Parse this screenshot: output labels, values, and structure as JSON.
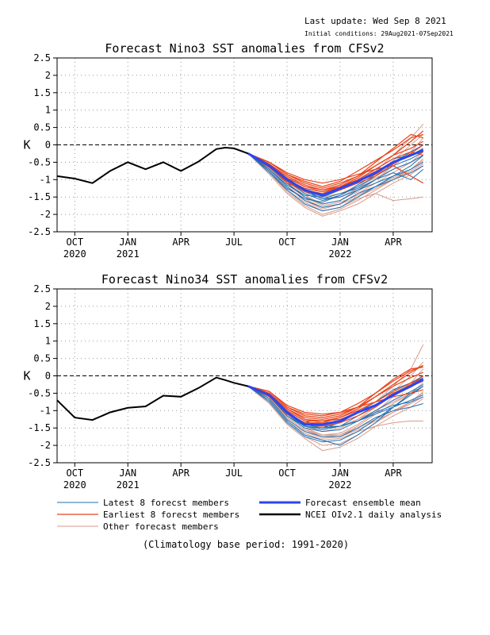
{
  "header": {
    "last_update": "Last update: Wed Sep 8 2021",
    "initial_conditions": "Initial conditions: 29Aug2021-07Sep2021"
  },
  "footer": {
    "note": "(Climatology base period: 1991-2020)"
  },
  "legend": {
    "latest": "Latest 8 forecst members",
    "earliest": "Earliest 8 forecst members",
    "other": "Other forecast members",
    "mean": "Forecast ensemble mean",
    "obs": "NCEI OIv2.1 daily analysis"
  },
  "colors": {
    "latest": "#1f6fb4",
    "earliest": "#e8441c",
    "other": "#d99a87",
    "mean": "#2b45f0",
    "obs": "#000000",
    "grid": "#999999"
  },
  "chart_data": [
    {
      "type": "line",
      "title": "Forecast Nino3 SST anomalies from CFSv2",
      "ylabel": "K",
      "ylim": [
        -2.5,
        2.5
      ],
      "yticks": [
        "2.5",
        "2",
        "1.5",
        "1",
        "0.5",
        "0",
        "-0.5",
        "-1",
        "-1.5",
        "-2",
        "-2.5"
      ],
      "xticks": [
        {
          "x": 3,
          "label": "OCT",
          "year": "2020"
        },
        {
          "x": 6,
          "label": "JAN",
          "year": "2021"
        },
        {
          "x": 9,
          "label": "APR",
          "year": ""
        },
        {
          "x": 12,
          "label": "JUL",
          "year": ""
        },
        {
          "x": 15,
          "label": "OCT",
          "year": ""
        },
        {
          "x": 18,
          "label": "JAN",
          "year": "2022"
        },
        {
          "x": 21,
          "label": "APR",
          "year": ""
        }
      ],
      "xlim": [
        2.0,
        23.2
      ],
      "grid": true,
      "zero_line": true,
      "observed": {
        "x": [
          2.0,
          3.0,
          4.0,
          5.0,
          6.0,
          7.0,
          8.0,
          9.0,
          10.0,
          11.0,
          11.5,
          12.0,
          12.8
        ],
        "y": [
          -0.9,
          -0.97,
          -1.1,
          -0.75,
          -0.5,
          -0.7,
          -0.5,
          -0.75,
          -0.48,
          -0.12,
          -0.08,
          -0.1,
          -0.25
        ]
      },
      "ensemble_mean": {
        "x": [
          12.8,
          14.0,
          15.0,
          16.0,
          17.0,
          18.0,
          19.0,
          20.0,
          21.0,
          22.0,
          22.7
        ],
        "y": [
          -0.25,
          -0.6,
          -1.0,
          -1.3,
          -1.45,
          -1.25,
          -1.05,
          -0.8,
          -0.5,
          -0.3,
          -0.15
        ]
      },
      "members": {
        "x": [
          12.8,
          14.0,
          15.0,
          16.0,
          17.0,
          18.0,
          19.0,
          20.0,
          21.0,
          22.0,
          22.7
        ],
        "latest": [
          [
            -0.25,
            -0.7,
            -1.2,
            -1.6,
            -1.8,
            -1.7,
            -1.4,
            -1.2,
            -1.0,
            -0.8,
            -0.6
          ],
          [
            -0.25,
            -0.65,
            -1.1,
            -1.5,
            -1.7,
            -1.6,
            -1.3,
            -1.0,
            -0.7,
            -0.5,
            -0.3
          ],
          [
            -0.25,
            -0.75,
            -1.25,
            -1.55,
            -1.65,
            -1.45,
            -1.2,
            -0.9,
            -0.6,
            -0.4,
            -0.2
          ],
          [
            -0.25,
            -0.6,
            -1.0,
            -1.35,
            -1.55,
            -1.4,
            -1.25,
            -1.0,
            -0.8,
            -1.0,
            -0.7
          ],
          [
            -0.25,
            -0.7,
            -1.15,
            -1.45,
            -1.5,
            -1.3,
            -1.0,
            -0.7,
            -0.4,
            -0.3,
            -0.1
          ],
          [
            -0.25,
            -0.8,
            -1.3,
            -1.7,
            -1.9,
            -1.8,
            -1.5,
            -1.2,
            -0.9,
            -0.6,
            -0.3
          ],
          [
            -0.25,
            -0.55,
            -0.95,
            -1.3,
            -1.55,
            -1.5,
            -1.3,
            -1.1,
            -0.9,
            -0.7,
            -0.5
          ],
          [
            -0.25,
            -0.65,
            -1.05,
            -1.4,
            -1.6,
            -1.45,
            -1.15,
            -0.85,
            -0.5,
            -0.2,
            0.0
          ]
        ],
        "earliest": [
          [
            -0.25,
            -0.5,
            -0.85,
            -1.1,
            -1.25,
            -1.1,
            -0.9,
            -0.6,
            -0.3,
            0.1,
            0.4
          ],
          [
            -0.25,
            -0.55,
            -0.9,
            -1.15,
            -1.3,
            -1.15,
            -0.9,
            -0.5,
            -0.1,
            0.3,
            0.2
          ],
          [
            -0.25,
            -0.6,
            -1.0,
            -1.25,
            -1.35,
            -1.2,
            -1.0,
            -0.7,
            -0.4,
            -0.2,
            -0.3
          ],
          [
            -0.25,
            -0.5,
            -0.8,
            -1.0,
            -1.1,
            -1.0,
            -0.85,
            -0.7,
            -0.6,
            -0.9,
            -1.1
          ],
          [
            -0.25,
            -0.6,
            -1.1,
            -1.3,
            -1.4,
            -1.2,
            -0.95,
            -0.6,
            -0.3,
            -0.1,
            0.1
          ],
          [
            -0.25,
            -0.55,
            -0.95,
            -1.2,
            -1.3,
            -1.2,
            -1.05,
            -0.85,
            -0.5,
            -0.3,
            -0.2
          ],
          [
            -0.25,
            -0.65,
            -1.05,
            -1.35,
            -1.45,
            -1.3,
            -1.1,
            -0.9,
            -0.55,
            -0.25,
            0.0
          ],
          [
            -0.25,
            -0.5,
            -0.85,
            -1.05,
            -1.2,
            -1.05,
            -0.75,
            -0.45,
            -0.15,
            0.2,
            0.3
          ]
        ],
        "other": [
          [
            -0.25,
            -0.7,
            -1.2,
            -1.6,
            -1.85,
            -1.7,
            -1.4,
            -1.1,
            -0.8,
            -0.5,
            -0.2
          ],
          [
            -0.25,
            -0.8,
            -1.35,
            -1.75,
            -2.0,
            -1.85,
            -1.6,
            -1.3,
            -1.0,
            -0.7,
            -0.4
          ],
          [
            -0.25,
            -0.6,
            -1.0,
            -1.3,
            -1.5,
            -1.4,
            -1.2,
            -0.95,
            -0.7,
            -0.5,
            -0.3
          ],
          [
            -0.25,
            -0.75,
            -1.3,
            -1.65,
            -1.9,
            -1.8,
            -1.55,
            -1.4,
            -1.6,
            -1.55,
            -1.5
          ],
          [
            -0.25,
            -0.55,
            -0.9,
            -1.2,
            -1.35,
            -1.25,
            -1.0,
            -0.75,
            -0.3,
            0.2,
            0.6
          ],
          [
            -0.25,
            -0.65,
            -1.1,
            -1.45,
            -1.7,
            -1.6,
            -1.35,
            -1.0,
            -0.6,
            -0.2,
            0.2
          ],
          [
            -0.25,
            -0.7,
            -1.15,
            -1.5,
            -1.75,
            -1.65,
            -1.45,
            -1.2,
            -0.95,
            -0.7,
            -0.45
          ],
          [
            -0.25,
            -0.85,
            -1.4,
            -1.8,
            -2.05,
            -1.9,
            -1.7,
            -1.4,
            -1.1,
            -0.85,
            -0.6
          ],
          [
            -0.25,
            -0.6,
            -1.05,
            -1.4,
            -1.6,
            -1.5,
            -1.25,
            -0.9,
            -0.45,
            0.0,
            0.3
          ],
          [
            -0.25,
            -0.7,
            -1.2,
            -1.55,
            -1.8,
            -1.7,
            -1.5,
            -1.25,
            -1.0,
            -0.75,
            -0.55
          ]
        ]
      }
    },
    {
      "type": "line",
      "title": "Forecast Nino34 SST anomalies from CFSv2",
      "ylabel": "K",
      "ylim": [
        -2.5,
        2.5
      ],
      "yticks": [
        "2.5",
        "2",
        "1.5",
        "1",
        "0.5",
        "0",
        "-0.5",
        "-1",
        "-1.5",
        "-2",
        "-2.5"
      ],
      "xticks": [
        {
          "x": 3,
          "label": "OCT",
          "year": "2020"
        },
        {
          "x": 6,
          "label": "JAN",
          "year": "2021"
        },
        {
          "x": 9,
          "label": "APR",
          "year": ""
        },
        {
          "x": 12,
          "label": "JUL",
          "year": ""
        },
        {
          "x": 15,
          "label": "OCT",
          "year": ""
        },
        {
          "x": 18,
          "label": "JAN",
          "year": "2022"
        },
        {
          "x": 21,
          "label": "APR",
          "year": ""
        }
      ],
      "xlim": [
        2.0,
        23.2
      ],
      "grid": true,
      "zero_line": true,
      "observed": {
        "x": [
          2.0,
          3.0,
          4.0,
          5.0,
          6.0,
          7.0,
          8.0,
          9.0,
          10.0,
          11.0,
          11.5,
          12.0,
          12.8
        ],
        "y": [
          -0.7,
          -1.2,
          -1.27,
          -1.05,
          -0.92,
          -0.88,
          -0.57,
          -0.6,
          -0.35,
          -0.05,
          -0.12,
          -0.2,
          -0.3
        ]
      },
      "ensemble_mean": {
        "x": [
          12.8,
          14.0,
          15.0,
          16.0,
          17.0,
          18.0,
          19.0,
          20.0,
          21.0,
          22.0,
          22.7
        ],
        "y": [
          -0.3,
          -0.55,
          -1.05,
          -1.4,
          -1.4,
          -1.3,
          -1.05,
          -0.85,
          -0.55,
          -0.3,
          -0.1
        ]
      },
      "members": {
        "x": [
          12.8,
          14.0,
          15.0,
          16.0,
          17.0,
          18.0,
          19.0,
          20.0,
          21.0,
          22.0,
          22.7
        ],
        "latest": [
          [
            -0.3,
            -0.65,
            -1.25,
            -1.6,
            -1.75,
            -1.75,
            -1.5,
            -1.2,
            -1.0,
            -0.9,
            -0.8
          ],
          [
            -0.3,
            -0.6,
            -1.15,
            -1.5,
            -1.6,
            -1.55,
            -1.3,
            -1.0,
            -0.7,
            -0.45,
            -0.25
          ],
          [
            -0.3,
            -0.7,
            -1.3,
            -1.7,
            -1.85,
            -2.0,
            -1.7,
            -1.35,
            -0.9,
            -0.5,
            -0.3
          ],
          [
            -0.3,
            -0.55,
            -1.05,
            -1.4,
            -1.5,
            -1.45,
            -1.3,
            -1.05,
            -0.85,
            -0.75,
            -0.6
          ],
          [
            -0.3,
            -0.6,
            -1.1,
            -1.45,
            -1.5,
            -1.35,
            -1.05,
            -0.75,
            -0.4,
            -0.2,
            0.0
          ],
          [
            -0.3,
            -0.75,
            -1.35,
            -1.75,
            -1.9,
            -1.85,
            -1.6,
            -1.25,
            -0.9,
            -0.55,
            -0.3
          ],
          [
            -0.3,
            -0.5,
            -1.0,
            -1.3,
            -1.45,
            -1.45,
            -1.3,
            -1.1,
            -0.9,
            -0.7,
            -0.55
          ],
          [
            -0.3,
            -0.6,
            -1.15,
            -1.45,
            -1.55,
            -1.45,
            -1.15,
            -0.85,
            -0.5,
            -0.25,
            -0.05
          ]
        ],
        "earliest": [
          [
            -0.3,
            -0.45,
            -0.9,
            -1.15,
            -1.2,
            -1.1,
            -0.9,
            -0.6,
            -0.25,
            0.1,
            0.3
          ],
          [
            -0.3,
            -0.5,
            -0.95,
            -1.2,
            -1.25,
            -1.15,
            -0.9,
            -0.5,
            -0.1,
            0.2,
            0.25
          ],
          [
            -0.3,
            -0.55,
            -1.0,
            -1.3,
            -1.3,
            -1.2,
            -1.0,
            -0.75,
            -0.45,
            -0.2,
            -0.1
          ],
          [
            -0.3,
            -0.45,
            -0.85,
            -1.05,
            -1.1,
            -1.05,
            -0.9,
            -0.75,
            -0.6,
            -0.5,
            -0.4
          ],
          [
            -0.3,
            -0.55,
            -1.1,
            -1.35,
            -1.35,
            -1.2,
            -0.95,
            -0.6,
            -0.3,
            -0.05,
            0.1
          ],
          [
            -0.3,
            -0.5,
            -0.95,
            -1.25,
            -1.3,
            -1.25,
            -1.05,
            -0.85,
            -0.5,
            -0.3,
            -0.15
          ],
          [
            -0.3,
            -0.6,
            -1.1,
            -1.4,
            -1.45,
            -1.35,
            -1.15,
            -0.9,
            -0.55,
            -0.25,
            0.0
          ],
          [
            -0.3,
            -0.45,
            -0.9,
            -1.1,
            -1.15,
            -1.05,
            -0.8,
            -0.5,
            -0.15,
            0.15,
            0.3
          ]
        ],
        "other": [
          [
            -0.3,
            -0.65,
            -1.2,
            -1.55,
            -1.75,
            -1.7,
            -1.45,
            -1.1,
            -0.8,
            -0.5,
            -0.2
          ],
          [
            -0.3,
            -0.75,
            -1.35,
            -1.75,
            -2.0,
            -1.95,
            -1.7,
            -1.35,
            -1.05,
            -0.75,
            -0.45
          ],
          [
            -0.3,
            -0.55,
            -1.05,
            -1.35,
            -1.5,
            -1.45,
            -1.25,
            -1.0,
            -0.75,
            -0.5,
            -0.3
          ],
          [
            -0.3,
            -0.7,
            -1.3,
            -1.65,
            -1.85,
            -1.8,
            -1.6,
            -1.45,
            -1.35,
            -1.3,
            -1.3
          ],
          [
            -0.3,
            -0.5,
            -0.95,
            -1.25,
            -1.35,
            -1.3,
            -1.05,
            -0.75,
            -0.3,
            0.2,
            0.9
          ],
          [
            -0.3,
            -0.6,
            -1.15,
            -1.5,
            -1.7,
            -1.65,
            -1.4,
            -1.05,
            -0.6,
            -0.2,
            0.2
          ],
          [
            -0.3,
            -0.65,
            -1.2,
            -1.55,
            -1.7,
            -1.7,
            -1.5,
            -1.25,
            -1.0,
            -0.75,
            -0.5
          ],
          [
            -0.3,
            -0.8,
            -1.4,
            -1.8,
            -2.15,
            -2.05,
            -1.8,
            -1.45,
            -1.15,
            -0.9,
            -0.65
          ],
          [
            -0.3,
            -0.55,
            -1.1,
            -1.45,
            -1.6,
            -1.5,
            -1.25,
            -0.9,
            -0.45,
            0.0,
            0.4
          ],
          [
            -0.3,
            -0.65,
            -1.25,
            -1.6,
            -1.8,
            -1.75,
            -1.55,
            -1.3,
            -1.05,
            -0.8,
            -0.6
          ]
        ]
      }
    }
  ]
}
